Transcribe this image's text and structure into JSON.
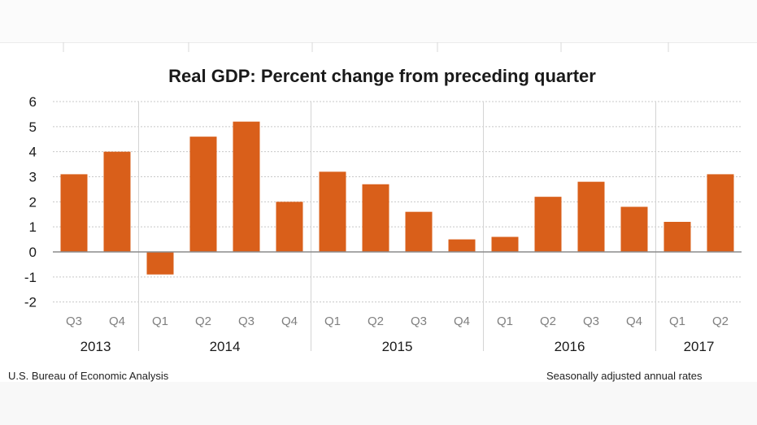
{
  "chart_data": {
    "type": "bar",
    "title": "Real GDP:  Percent change from preceding quarter",
    "categories": [
      "Q3",
      "Q4",
      "Q1",
      "Q2",
      "Q3",
      "Q4",
      "Q1",
      "Q2",
      "Q3",
      "Q4",
      "Q1",
      "Q2",
      "Q3",
      "Q4",
      "Q1",
      "Q2"
    ],
    "years": [
      {
        "label": "2013",
        "start": 0,
        "end": 1
      },
      {
        "label": "2014",
        "start": 2,
        "end": 5
      },
      {
        "label": "2015",
        "start": 6,
        "end": 9
      },
      {
        "label": "2016",
        "start": 10,
        "end": 13
      },
      {
        "label": "2017",
        "start": 14,
        "end": 15
      }
    ],
    "values": [
      3.1,
      4.0,
      -0.9,
      4.6,
      5.2,
      2.0,
      3.2,
      2.7,
      1.6,
      0.5,
      0.6,
      2.2,
      2.8,
      1.8,
      1.2,
      3.1
    ],
    "ylim": [
      -2,
      6
    ],
    "yticks": [
      6,
      5,
      4,
      3,
      2,
      1,
      0,
      -1,
      -2
    ],
    "grid": true,
    "bar_color": "#d95f1a"
  },
  "footer": {
    "source": "U.S. Bureau of Economic Analysis",
    "note": "Seasonally adjusted annual  rates"
  }
}
